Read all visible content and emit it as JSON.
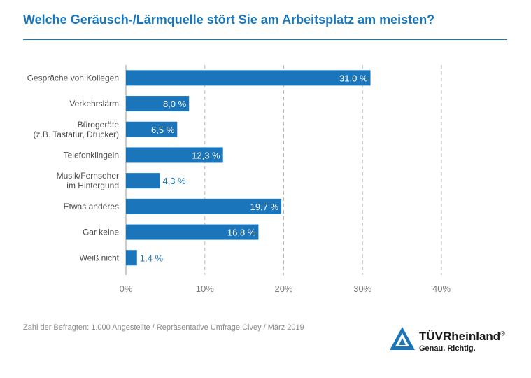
{
  "chart_data": {
    "type": "bar",
    "orientation": "horizontal",
    "title": "Welche Geräusch-/Lärmquelle stört Sie am Arbeitsplatz am meisten?",
    "categories": [
      [
        "Gespräche von Kollegen"
      ],
      [
        "Verkehrslärm"
      ],
      [
        "Bürogeräte",
        "(z.B. Tastatur, Drucker)"
      ],
      [
        "Telefonklingeln"
      ],
      [
        "Musik/Fernseher",
        "im Hintergund"
      ],
      [
        "Etwas anderes"
      ],
      [
        "Gar keine"
      ],
      [
        "Weiß nicht"
      ]
    ],
    "values": [
      31.0,
      8.0,
      6.5,
      12.3,
      4.3,
      19.7,
      16.8,
      1.4
    ],
    "value_labels": [
      "31,0 %",
      "8,0 %",
      "6,5 %",
      "12,3 %",
      "4,3 %",
      "19,7 %",
      "16,8 %",
      "1,4 %"
    ],
    "xlim": [
      0,
      40
    ],
    "ticks": [
      0,
      10,
      20,
      30,
      40
    ],
    "tick_labels": [
      "0%",
      "10%",
      "20%",
      "30%",
      "40%"
    ],
    "grid": "vertical-dashed",
    "colors": {
      "bar": "#1b75bb",
      "title": "#1b75bb",
      "grid": "#b8b8b8"
    }
  },
  "footnote": "Zahl der Befragten: 1.000 Angestellte / Repräsentative Umfrage Civey / März 2019",
  "logo": {
    "brand": "TÜVRheinland",
    "registered": "®",
    "slogan": "Genau. Richtig.",
    "icon": "tuv-triangle-icon"
  }
}
